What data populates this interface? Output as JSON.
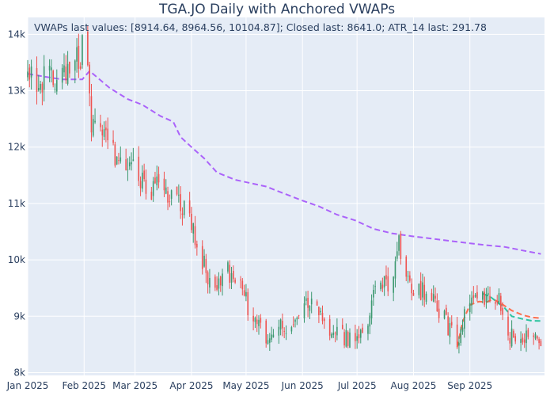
{
  "chart_data": {
    "type": "candlestick",
    "title": "TGA.JO Daily with Anchored VWAPs",
    "annotation": "VWAPs last values: [8914.64, 8964.56, 10104.87]; Closed last: 8641.0; ATR_14 last: 291.78",
    "x_range": [
      "2025-01-01",
      "2025-10-12"
    ],
    "ylim": [
      7950,
      14300
    ],
    "y_ticks": [
      {
        "value": 8000,
        "label": "8k"
      },
      {
        "value": 9000,
        "label": "9k"
      },
      {
        "value": 10000,
        "label": "10k"
      },
      {
        "value": 11000,
        "label": "11k"
      },
      {
        "value": 12000,
        "label": "12k"
      },
      {
        "value": 13000,
        "label": "13k"
      },
      {
        "value": 14000,
        "label": "14k"
      }
    ],
    "x_ticks": [
      {
        "date": "2025-01-01",
        "label": "Jan 2025"
      },
      {
        "date": "2025-02-01",
        "label": "Feb 2025"
      },
      {
        "date": "2025-03-01",
        "label": "Mar 2025"
      },
      {
        "date": "2025-04-01",
        "label": "Apr 2025"
      },
      {
        "date": "2025-05-01",
        "label": "May 2025"
      },
      {
        "date": "2025-06-01",
        "label": "Jun 2025"
      },
      {
        "date": "2025-07-01",
        "label": "Jul 2025"
      },
      {
        "date": "2025-08-01",
        "label": "Aug 2025"
      },
      {
        "date": "2025-09-01",
        "label": "Sep 2025"
      }
    ],
    "colors": {
      "increasing": "#3d9970",
      "decreasing": "#ef5350",
      "vwap_1": "#ff6f4e",
      "vwap_2": "#2ec4a0",
      "vwap_3": "#ab63fa",
      "plot_bg": "#e5ecf6",
      "grid": "#ffffff"
    },
    "close_anchors": [
      [
        "2025-01-01",
        13300
      ],
      [
        "2025-01-08",
        13150
      ],
      [
        "2025-01-15",
        13250
      ],
      [
        "2025-01-22",
        13400
      ],
      [
        "2025-01-29",
        13550
      ],
      [
        "2025-02-02",
        13900
      ],
      [
        "2025-02-05",
        12500
      ],
      [
        "2025-02-10",
        12300
      ],
      [
        "2025-02-15",
        12000
      ],
      [
        "2025-02-22",
        11700
      ],
      [
        "2025-03-01",
        11600
      ],
      [
        "2025-03-08",
        11300
      ],
      [
        "2025-03-15",
        11250
      ],
      [
        "2025-03-22",
        11100
      ],
      [
        "2025-03-29",
        10900
      ],
      [
        "2025-04-01",
        10600
      ],
      [
        "2025-04-05",
        10200
      ],
      [
        "2025-04-10",
        9700
      ],
      [
        "2025-04-15",
        9500
      ],
      [
        "2025-04-20",
        9800
      ],
      [
        "2025-04-27",
        9600
      ],
      [
        "2025-05-01",
        9300
      ],
      [
        "2025-05-05",
        8900
      ],
      [
        "2025-05-10",
        8700
      ],
      [
        "2025-05-15",
        8650
      ],
      [
        "2025-05-20",
        8800
      ],
      [
        "2025-05-27",
        8900
      ],
      [
        "2025-06-01",
        9300
      ],
      [
        "2025-06-08",
        9200
      ],
      [
        "2025-06-12",
        8900
      ],
      [
        "2025-06-18",
        8700
      ],
      [
        "2025-06-25",
        8600
      ],
      [
        "2025-07-01",
        8650
      ],
      [
        "2025-07-06",
        8700
      ],
      [
        "2025-07-10",
        9500
      ],
      [
        "2025-07-20",
        9550
      ],
      [
        "2025-07-24",
        10300
      ],
      [
        "2025-07-28",
        9600
      ],
      [
        "2025-08-05",
        9400
      ],
      [
        "2025-08-10",
        9500
      ],
      [
        "2025-08-15",
        9100
      ],
      [
        "2025-08-20",
        8800
      ],
      [
        "2025-08-25",
        8500
      ],
      [
        "2025-09-01",
        9350
      ],
      [
        "2025-09-06",
        9350
      ],
      [
        "2025-09-12",
        9300
      ],
      [
        "2025-09-18",
        9250
      ],
      [
        "2025-09-22",
        8700
      ],
      [
        "2025-09-26",
        8650
      ],
      [
        "2025-10-01",
        8700
      ],
      [
        "2025-10-06",
        8800
      ],
      [
        "2025-10-10",
        8641
      ]
    ],
    "vwap_series": [
      {
        "points": [
          [
            "2025-01-01",
            13300
          ],
          [
            "2025-01-10",
            13250
          ],
          [
            "2025-01-20",
            13200
          ],
          [
            "2025-01-31",
            13200
          ],
          [
            "2025-02-04",
            13350
          ],
          [
            "2025-02-15",
            13050
          ],
          [
            "2025-02-25",
            12850
          ],
          [
            "2025-03-05",
            12750
          ],
          [
            "2025-03-15",
            12550
          ],
          [
            "2025-03-22",
            12450
          ],
          [
            "2025-03-26",
            12180
          ],
          [
            "2025-04-01",
            12000
          ],
          [
            "2025-04-08",
            11800
          ],
          [
            "2025-04-15",
            11550
          ],
          [
            "2025-04-25",
            11420
          ],
          [
            "2025-05-05",
            11350
          ],
          [
            "2025-05-12",
            11300
          ],
          [
            "2025-05-20",
            11200
          ],
          [
            "2025-06-01",
            11050
          ],
          [
            "2025-06-10",
            10950
          ],
          [
            "2025-06-20",
            10800
          ],
          [
            "2025-06-30",
            10700
          ],
          [
            "2025-07-10",
            10550
          ],
          [
            "2025-07-20",
            10470
          ],
          [
            "2025-07-31",
            10420
          ],
          [
            "2025-08-10",
            10380
          ],
          [
            "2025-08-25",
            10320
          ],
          [
            "2025-09-10",
            10260
          ],
          [
            "2025-09-20",
            10230
          ],
          [
            "2025-10-01",
            10160
          ],
          [
            "2025-10-10",
            10104.87
          ]
        ]
      },
      {
        "points": [
          [
            "2025-08-25",
            8450
          ],
          [
            "2025-08-28",
            8900
          ],
          [
            "2025-09-01",
            9200
          ],
          [
            "2025-09-06",
            9260
          ],
          [
            "2025-09-10",
            9250
          ],
          [
            "2025-09-14",
            9300
          ],
          [
            "2025-09-18",
            9230
          ],
          [
            "2025-09-24",
            9100
          ],
          [
            "2025-09-30",
            9020
          ],
          [
            "2025-10-05",
            8980
          ],
          [
            "2025-10-10",
            8964.56
          ]
        ]
      },
      {
        "points": [
          [
            "2025-09-08",
            9400
          ],
          [
            "2025-09-12",
            9350
          ],
          [
            "2025-09-16",
            9250
          ],
          [
            "2025-09-20",
            9150
          ],
          [
            "2025-09-24",
            9000
          ],
          [
            "2025-09-30",
            8950
          ],
          [
            "2025-10-05",
            8920
          ],
          [
            "2025-10-10",
            8914.64
          ]
        ]
      }
    ]
  }
}
